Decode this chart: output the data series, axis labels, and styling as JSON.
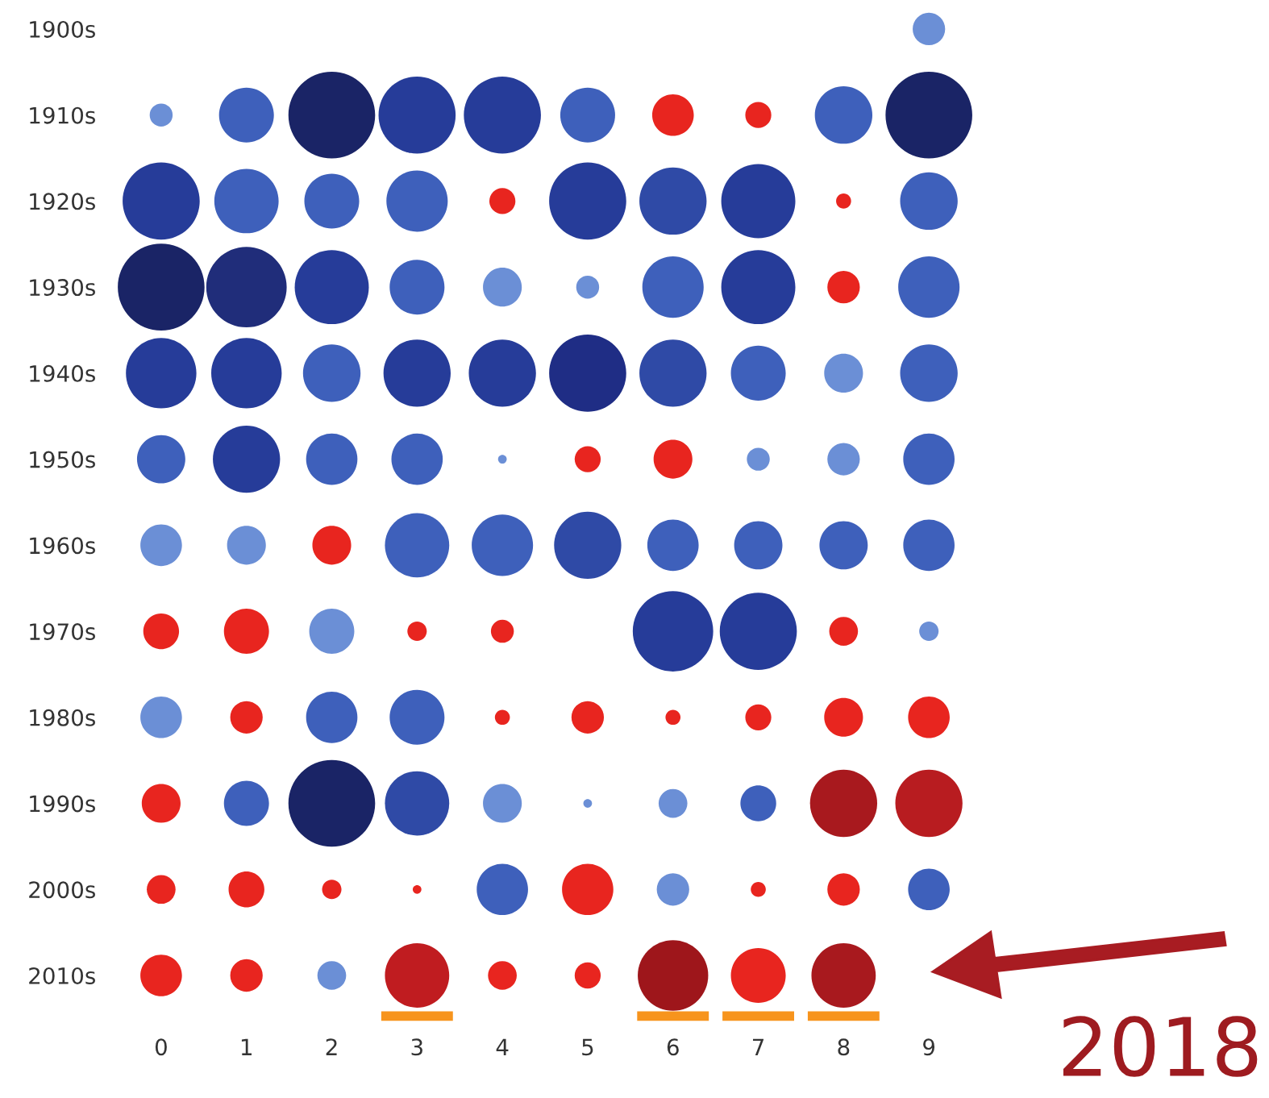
{
  "chart_data": {
    "type": "bubble",
    "xlim": [
      0,
      9
    ],
    "xticks": [
      0,
      1,
      2,
      3,
      4,
      5,
      6,
      7,
      8,
      9
    ],
    "ylim": [
      2010,
      1900
    ],
    "yticks": [
      {
        "value": 1900,
        "label": "1900s"
      },
      {
        "value": 1910,
        "label": "1910s"
      },
      {
        "value": 1920,
        "label": "1920s"
      },
      {
        "value": 1930,
        "label": "1930s"
      },
      {
        "value": 1940,
        "label": "1940s"
      },
      {
        "value": 1950,
        "label": "1950s"
      },
      {
        "value": 1960,
        "label": "1960s"
      },
      {
        "value": 1970,
        "label": "1970s"
      },
      {
        "value": 1980,
        "label": "1980s"
      },
      {
        "value": 1990,
        "label": "1990s"
      },
      {
        "value": 2000,
        "label": "2000s"
      },
      {
        "value": 2010,
        "label": "2010s"
      }
    ],
    "series": [
      {
        "x": [
          9
        ],
        "values": [
          1900
        ],
        "sizes": [
          0.14
        ],
        "colors": [
          "#6b8fd6"
        ]
      },
      {
        "x": [
          0,
          1,
          2,
          3,
          4,
          5,
          6,
          7,
          8,
          9
        ],
        "values": [
          1910,
          1910,
          1910,
          1910,
          1910,
          1910,
          1910,
          1910,
          1910,
          1910
        ],
        "sizes": [
          0.07,
          0.4,
          1,
          0.79,
          0.79,
          0.4,
          0.23,
          0.09,
          0.44,
          1
        ],
        "colors": [
          "#6b8fd6",
          "#3e60bb",
          "#1a2466",
          "#263c99",
          "#263c99",
          "#3e60bb",
          "#e8251f",
          "#e8251f",
          "#3e60bb",
          "#1a2466"
        ]
      },
      {
        "x": [
          0,
          1,
          2,
          3,
          4,
          5,
          6,
          7,
          8,
          9
        ],
        "values": [
          1920,
          1920,
          1920,
          1920,
          1920,
          1920,
          1920,
          1920,
          1920,
          1920
        ],
        "sizes": [
          0.79,
          0.55,
          0.4,
          0.5,
          0.09,
          0.79,
          0.6,
          0.73,
          0.03,
          0.44
        ],
        "colors": [
          "#263c99",
          "#3e60bb",
          "#3e60bb",
          "#3e60bb",
          "#e8251f",
          "#263c99",
          "#2f4aa6",
          "#263c99",
          "#e8251f",
          "#3e60bb"
        ]
      },
      {
        "x": [
          0,
          1,
          2,
          3,
          4,
          5,
          6,
          7,
          8,
          9
        ],
        "values": [
          1930,
          1930,
          1930,
          1930,
          1930,
          1930,
          1930,
          1930,
          1930,
          1930
        ],
        "sizes": [
          1,
          0.86,
          0.73,
          0.4,
          0.2,
          0.07,
          0.5,
          0.73,
          0.14,
          0.5
        ],
        "colors": [
          "#1a2466",
          "#202d7a",
          "#263c99",
          "#3e60bb",
          "#6b8fd6",
          "#6b8fd6",
          "#3e60bb",
          "#263c99",
          "#e8251f",
          "#3e60bb"
        ]
      },
      {
        "x": [
          0,
          1,
          2,
          3,
          4,
          5,
          6,
          7,
          8,
          9
        ],
        "values": [
          1940,
          1940,
          1940,
          1940,
          1940,
          1940,
          1940,
          1940,
          1940,
          1940
        ],
        "sizes": [
          0.66,
          0.66,
          0.44,
          0.6,
          0.6,
          0.79,
          0.6,
          0.4,
          0.2,
          0.44
        ],
        "colors": [
          "#263c99",
          "#263c99",
          "#3e60bb",
          "#263c99",
          "#263c99",
          "#1f2d85",
          "#2f4aa6",
          "#3e60bb",
          "#6b8fd6",
          "#3e60bb"
        ]
      },
      {
        "x": [
          0,
          1,
          2,
          3,
          4,
          5,
          6,
          7,
          8,
          9
        ],
        "values": [
          1950,
          1950,
          1950,
          1950,
          1950,
          1950,
          1950,
          1950,
          1950,
          1950
        ],
        "sizes": [
          0.31,
          0.6,
          0.35,
          0.35,
          0.01,
          0.09,
          0.2,
          0.07,
          0.14,
          0.35
        ],
        "colors": [
          "#3e60bb",
          "#263c99",
          "#3e60bb",
          "#3e60bb",
          "#6b8fd6",
          "#e8251f",
          "#e8251f",
          "#6b8fd6",
          "#6b8fd6",
          "#3e60bb"
        ]
      },
      {
        "x": [
          0,
          1,
          2,
          3,
          4,
          5,
          6,
          7,
          8,
          9
        ],
        "values": [
          1960,
          1960,
          1960,
          1960,
          1960,
          1960,
          1960,
          1960,
          1960,
          1960
        ],
        "sizes": [
          0.23,
          0.2,
          0.2,
          0.55,
          0.5,
          0.6,
          0.35,
          0.31,
          0.31,
          0.35
        ],
        "colors": [
          "#6b8fd6",
          "#6b8fd6",
          "#e8251f",
          "#3e60bb",
          "#3e60bb",
          "#2f4aa6",
          "#3e60bb",
          "#3e60bb",
          "#3e60bb",
          "#3e60bb"
        ]
      },
      {
        "x": [
          0,
          1,
          2,
          3,
          4,
          6,
          7,
          8,
          9
        ],
        "values": [
          1970,
          1970,
          1970,
          1970,
          1970,
          1970,
          1970,
          1970,
          1970
        ],
        "sizes": [
          0.17,
          0.27,
          0.27,
          0.05,
          0.07,
          0.86,
          0.79,
          0.11,
          0.05
        ],
        "colors": [
          "#e8251f",
          "#e8251f",
          "#6b8fd6",
          "#e8251f",
          "#e8251f",
          "#263c99",
          "#263c99",
          "#e8251f",
          "#6b8fd6"
        ]
      },
      {
        "x": [
          0,
          1,
          2,
          3,
          4,
          5,
          6,
          7,
          8,
          9
        ],
        "values": [
          1980,
          1980,
          1980,
          1980,
          1980,
          1980,
          1980,
          1980,
          1980,
          1980
        ],
        "sizes": [
          0.23,
          0.14,
          0.35,
          0.4,
          0.03,
          0.14,
          0.03,
          0.09,
          0.2,
          0.23
        ],
        "colors": [
          "#6b8fd6",
          "#e8251f",
          "#3e60bb",
          "#3e60bb",
          "#e8251f",
          "#e8251f",
          "#e8251f",
          "#e8251f",
          "#e8251f",
          "#e8251f"
        ]
      },
      {
        "x": [
          0,
          1,
          2,
          3,
          4,
          5,
          6,
          7,
          8,
          9
        ],
        "values": [
          1990,
          1990,
          1990,
          1990,
          1990,
          1990,
          1990,
          1990,
          1990,
          1990
        ],
        "sizes": [
          0.2,
          0.27,
          1,
          0.55,
          0.2,
          0.01,
          0.11,
          0.17,
          0.6,
          0.6
        ],
        "colors": [
          "#e8251f",
          "#3e60bb",
          "#1a2466",
          "#2f4aa6",
          "#6b8fd6",
          "#6b8fd6",
          "#6b8fd6",
          "#3e60bb",
          "#a8191e",
          "#b81c20"
        ]
      },
      {
        "x": [
          0,
          1,
          2,
          3,
          4,
          5,
          6,
          7,
          8,
          9
        ],
        "values": [
          2000,
          2000,
          2000,
          2000,
          2000,
          2000,
          2000,
          2000,
          2000,
          2000
        ],
        "sizes": [
          0.11,
          0.17,
          0.05,
          0.01,
          0.35,
          0.35,
          0.14,
          0.03,
          0.14,
          0.23
        ],
        "colors": [
          "#e8251f",
          "#e8251f",
          "#e8251f",
          "#e8251f",
          "#3e60bb",
          "#e8251f",
          "#6b8fd6",
          "#e8251f",
          "#e8251f",
          "#3e60bb"
        ]
      },
      {
        "x": [
          0,
          1,
          2,
          3,
          4,
          5,
          6,
          7,
          8
        ],
        "values": [
          2010,
          2010,
          2010,
          2010,
          2010,
          2010,
          2010,
          2010,
          2010
        ],
        "sizes": [
          0.23,
          0.14,
          0.11,
          0.55,
          0.11,
          0.09,
          0.66,
          0.4,
          0.55
        ],
        "colors": [
          "#e8251f",
          "#e8251f",
          "#6b8fd6",
          "#c01c20",
          "#e8251f",
          "#e8251f",
          "#9e161b",
          "#e8251f",
          "#a8191e"
        ]
      }
    ],
    "annotations": [
      "2018"
    ]
  }
}
